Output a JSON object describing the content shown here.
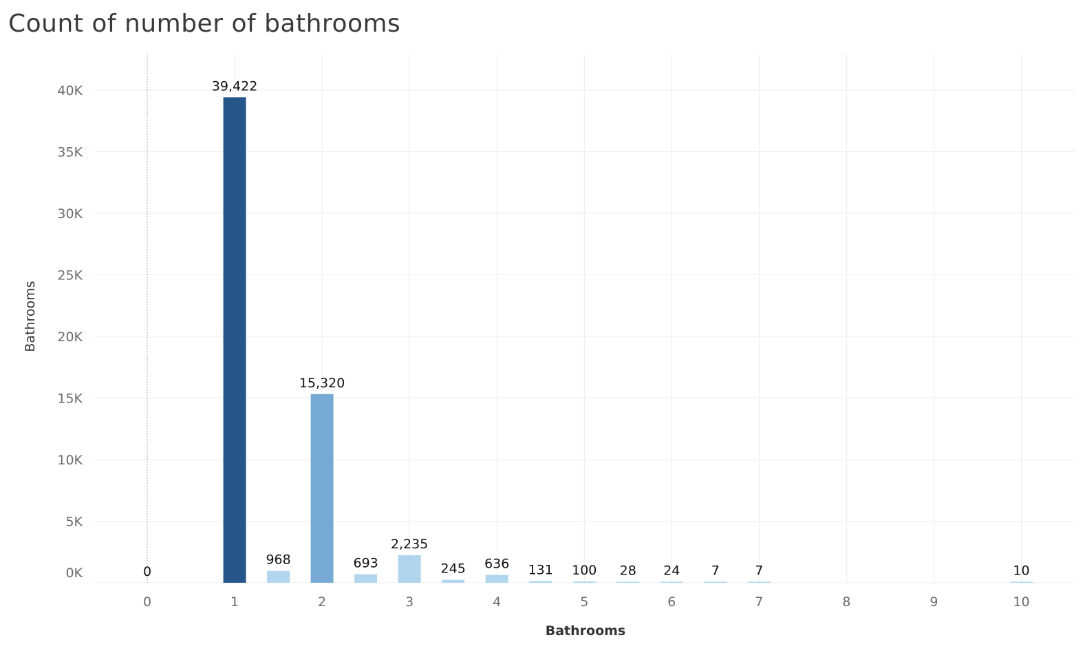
{
  "chart_data": {
    "type": "bar",
    "title": "Count of number of bathrooms",
    "xlabel": "Bathrooms",
    "ylabel": "Bathrooms",
    "xlim": [
      -0.6,
      10.6
    ],
    "ylim": [
      0,
      42000
    ],
    "x_ticks": [
      0,
      1,
      2,
      3,
      4,
      5,
      6,
      7,
      8,
      9,
      10
    ],
    "y_ticks": [
      0,
      5000,
      10000,
      15000,
      20000,
      25000,
      30000,
      35000,
      40000
    ],
    "y_tick_labels": [
      "0K",
      "5K",
      "10K",
      "15K",
      "20K",
      "25K",
      "30K",
      "35K",
      "40K"
    ],
    "grid": true,
    "bars": [
      {
        "x": 0,
        "value": 0,
        "label": "0"
      },
      {
        "x": 1,
        "value": 39422,
        "label": "39,422"
      },
      {
        "x": 1.5,
        "value": 968,
        "label": "968"
      },
      {
        "x": 2,
        "value": 15320,
        "label": "15,320"
      },
      {
        "x": 2.5,
        "value": 693,
        "label": "693"
      },
      {
        "x": 3,
        "value": 2235,
        "label": "2,235"
      },
      {
        "x": 3.5,
        "value": 245,
        "label": "245"
      },
      {
        "x": 4,
        "value": 636,
        "label": "636"
      },
      {
        "x": 4.5,
        "value": 131,
        "label": "131"
      },
      {
        "x": 5,
        "value": 100,
        "label": "100"
      },
      {
        "x": 5.5,
        "value": 28,
        "label": "28"
      },
      {
        "x": 6,
        "value": 24,
        "label": "24"
      },
      {
        "x": 6.5,
        "value": 7,
        "label": "7"
      },
      {
        "x": 7,
        "value": 7,
        "label": "7"
      },
      {
        "x": 10,
        "value": 10,
        "label": "10"
      }
    ],
    "color_scale": {
      "low": "#b2d6ee",
      "mid": "#74a8d2",
      "high": "#27578a"
    }
  }
}
